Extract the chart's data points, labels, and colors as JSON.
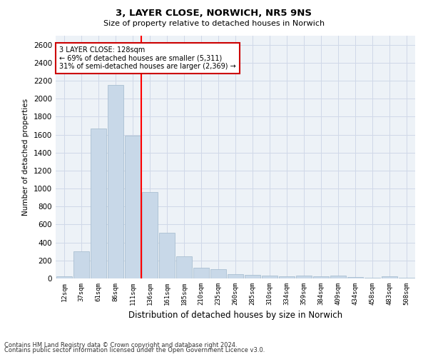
{
  "title": "3, LAYER CLOSE, NORWICH, NR5 9NS",
  "subtitle": "Size of property relative to detached houses in Norwich",
  "xlabel": "Distribution of detached houses by size in Norwich",
  "ylabel": "Number of detached properties",
  "categories": [
    "12sqm",
    "37sqm",
    "61sqm",
    "86sqm",
    "111sqm",
    "136sqm",
    "161sqm",
    "185sqm",
    "210sqm",
    "235sqm",
    "260sqm",
    "285sqm",
    "310sqm",
    "334sqm",
    "359sqm",
    "384sqm",
    "409sqm",
    "434sqm",
    "458sqm",
    "483sqm",
    "508sqm"
  ],
  "values": [
    25,
    300,
    1670,
    2150,
    1590,
    960,
    505,
    250,
    120,
    100,
    50,
    42,
    35,
    20,
    30,
    22,
    30,
    15,
    5,
    25,
    5
  ],
  "bar_color": "#c8d8e8",
  "bar_edge_color": "#a0b8cc",
  "red_line_index": 4.5,
  "annotation_text": "3 LAYER CLOSE: 128sqm\n← 69% of detached houses are smaller (5,311)\n31% of semi-detached houses are larger (2,369) →",
  "annotation_box_color": "#ffffff",
  "annotation_box_edge_color": "#cc0000",
  "ylim": [
    0,
    2700
  ],
  "yticks": [
    0,
    200,
    400,
    600,
    800,
    1000,
    1200,
    1400,
    1600,
    1800,
    2000,
    2200,
    2400,
    2600
  ],
  "grid_color": "#d0d8e8",
  "background_color": "#edf2f7",
  "footer_line1": "Contains HM Land Registry data © Crown copyright and database right 2024.",
  "footer_line2": "Contains public sector information licensed under the Open Government Licence v3.0."
}
